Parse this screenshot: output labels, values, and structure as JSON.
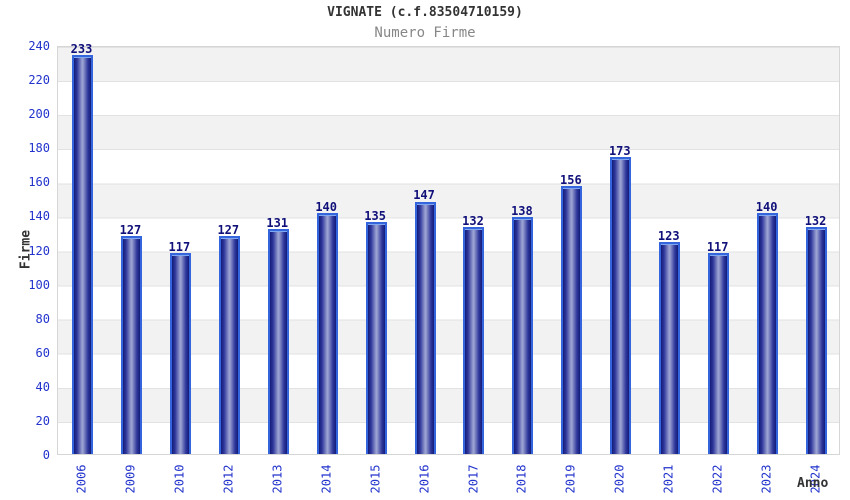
{
  "chart_data": {
    "type": "bar",
    "title": "VIGNATE (c.f.83504710159)",
    "subtitle": "Numero Firme",
    "xlabel": "Anno",
    "ylabel": "Firme",
    "categories": [
      "2006",
      "2009",
      "2010",
      "2012",
      "2013",
      "2014",
      "2015",
      "2016",
      "2017",
      "2018",
      "2019",
      "2020",
      "2021",
      "2022",
      "2023",
      "2024"
    ],
    "values": [
      233,
      127,
      117,
      127,
      131,
      140,
      135,
      147,
      132,
      138,
      156,
      173,
      123,
      117,
      140,
      132
    ],
    "ylim": [
      0,
      240
    ],
    "ytick_step": 20,
    "yticks": [
      0,
      20,
      40,
      60,
      80,
      100,
      120,
      140,
      160,
      180,
      200,
      220,
      240
    ],
    "grid": "horizontal-bands",
    "legend": "none",
    "colors": {
      "bar_border": "#3465dd",
      "bar_dark": "#141c78",
      "bar_light": "#9aa2d2",
      "tick_label": "#2233cc",
      "value_label": "#10107a",
      "title": "#333333",
      "subtitle": "#878787",
      "band_gray": "#f2f2f2",
      "gridline": "#e2e2e2"
    }
  }
}
